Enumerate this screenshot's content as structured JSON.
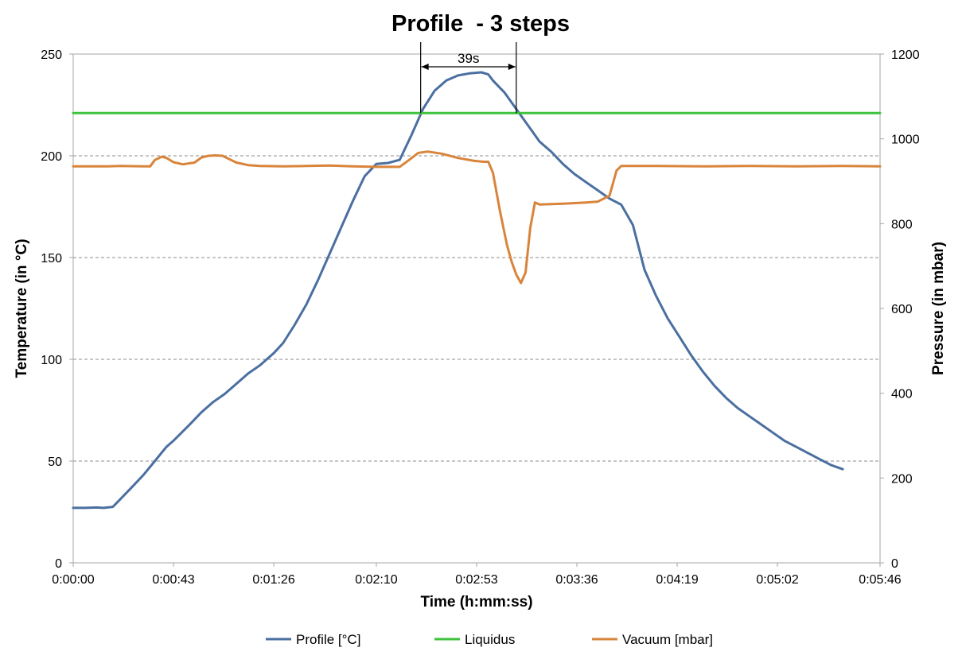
{
  "chart_data": {
    "type": "line",
    "title": "Profile  - 3 steps",
    "xlabel": "Time (h:mm:ss)",
    "ylabel_left": "Temperature (in °C)",
    "ylabel_right": "Pressure (in mbar)",
    "x_unit": "seconds",
    "xlim": [
      0,
      346
    ],
    "ylim_left": [
      0,
      250
    ],
    "ylim_right": [
      0,
      1200
    ],
    "x_ticks": [
      0,
      43,
      86,
      130,
      173,
      216,
      259,
      302,
      346
    ],
    "x_tick_labels": [
      "0:00:00",
      "0:00:43",
      "0:01:26",
      "0:02:10",
      "0:02:53",
      "0:03:36",
      "0:04:19",
      "0:05:02",
      "0:05:46"
    ],
    "y_left_ticks": [
      0,
      50,
      100,
      150,
      200,
      250
    ],
    "y_right_ticks": [
      0,
      200,
      400,
      600,
      800,
      1000,
      1200
    ],
    "grid": "horizontal dashed",
    "legend_position": "bottom",
    "series": [
      {
        "name": "Profile [°C]",
        "axis": "left",
        "color": "#4a6fa0",
        "points": [
          [
            0,
            27
          ],
          [
            5,
            27
          ],
          [
            10,
            27.2
          ],
          [
            13,
            27
          ],
          [
            17,
            27.5
          ],
          [
            20,
            31
          ],
          [
            25,
            37
          ],
          [
            30,
            43
          ],
          [
            35,
            50
          ],
          [
            40,
            57
          ],
          [
            43,
            60
          ],
          [
            50,
            68
          ],
          [
            55,
            74
          ],
          [
            60,
            79
          ],
          [
            65,
            83
          ],
          [
            70,
            88
          ],
          [
            75,
            93
          ],
          [
            80,
            97
          ],
          [
            86,
            103
          ],
          [
            90,
            108
          ],
          [
            95,
            117
          ],
          [
            100,
            127
          ],
          [
            105,
            139
          ],
          [
            110,
            152
          ],
          [
            115,
            165
          ],
          [
            120,
            178
          ],
          [
            125,
            190
          ],
          [
            130,
            196
          ],
          [
            135,
            196.5
          ],
          [
            140,
            198
          ],
          [
            145,
            210
          ],
          [
            150,
            223
          ],
          [
            155,
            232
          ],
          [
            160,
            237
          ],
          [
            165,
            239.5
          ],
          [
            170,
            240.5
          ],
          [
            175,
            241
          ],
          [
            178,
            240
          ],
          [
            180,
            237
          ],
          [
            185,
            231
          ],
          [
            190,
            223
          ],
          [
            195,
            215
          ],
          [
            200,
            207
          ],
          [
            205,
            202
          ],
          [
            210,
            196
          ],
          [
            215,
            191
          ],
          [
            220,
            187
          ],
          [
            225,
            183
          ],
          [
            230,
            179
          ],
          [
            235,
            176
          ],
          [
            240,
            166
          ],
          [
            245,
            144
          ],
          [
            250,
            131
          ],
          [
            255,
            120
          ],
          [
            260,
            111
          ],
          [
            265,
            102
          ],
          [
            270,
            94
          ],
          [
            275,
            87
          ],
          [
            280,
            81
          ],
          [
            285,
            76
          ],
          [
            290,
            72
          ],
          [
            295,
            68
          ],
          [
            300,
            64
          ],
          [
            305,
            60
          ],
          [
            310,
            57
          ],
          [
            315,
            54
          ],
          [
            320,
            51
          ],
          [
            325,
            48
          ],
          [
            330,
            46
          ]
        ]
      },
      {
        "name": "Liquidus",
        "axis": "left",
        "color": "#3fc33f",
        "points": [
          [
            0,
            221
          ],
          [
            346,
            221
          ]
        ]
      },
      {
        "name": "Vacuum [mbar]",
        "axis": "right",
        "color": "#d9843b",
        "points": [
          [
            0,
            935
          ],
          [
            15,
            935
          ],
          [
            20,
            936
          ],
          [
            30,
            935
          ],
          [
            33,
            935
          ],
          [
            35,
            950
          ],
          [
            38,
            958
          ],
          [
            40,
            955
          ],
          [
            43,
            945
          ],
          [
            47,
            940
          ],
          [
            52,
            944
          ],
          [
            55,
            956
          ],
          [
            58,
            960
          ],
          [
            61,
            961
          ],
          [
            64,
            960
          ],
          [
            67,
            952
          ],
          [
            70,
            944
          ],
          [
            75,
            938
          ],
          [
            80,
            936
          ],
          [
            90,
            935
          ],
          [
            100,
            936
          ],
          [
            110,
            937
          ],
          [
            120,
            935
          ],
          [
            130,
            934
          ],
          [
            140,
            934
          ],
          [
            144,
            950
          ],
          [
            148,
            967
          ],
          [
            152,
            970
          ],
          [
            158,
            965
          ],
          [
            165,
            955
          ],
          [
            172,
            948
          ],
          [
            176,
            946
          ],
          [
            178,
            946
          ],
          [
            180,
            920
          ],
          [
            183,
            830
          ],
          [
            186,
            750
          ],
          [
            188,
            710
          ],
          [
            190,
            680
          ],
          [
            192,
            660
          ],
          [
            194,
            685
          ],
          [
            196,
            790
          ],
          [
            198,
            850
          ],
          [
            200,
            845
          ],
          [
            205,
            846
          ],
          [
            210,
            847
          ],
          [
            220,
            850
          ],
          [
            225,
            852
          ],
          [
            230,
            866
          ],
          [
            233,
            925
          ],
          [
            235,
            936
          ],
          [
            250,
            936
          ],
          [
            270,
            935
          ],
          [
            290,
            936
          ],
          [
            310,
            935
          ],
          [
            330,
            936
          ],
          [
            346,
            935
          ]
        ]
      }
    ],
    "annotations": [
      {
        "text": "39s",
        "x_start": 149,
        "x_end": 190
      }
    ]
  }
}
